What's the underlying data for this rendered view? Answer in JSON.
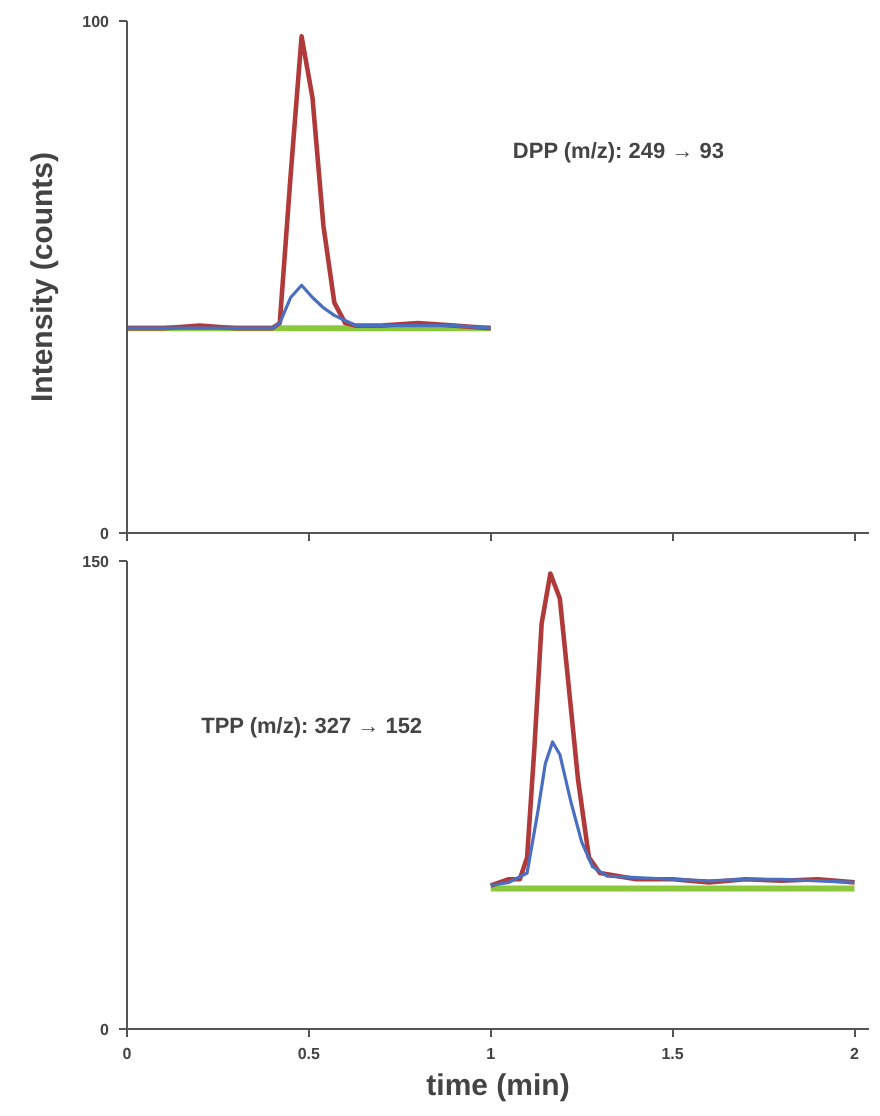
{
  "chart_data": [
    {
      "type": "line",
      "ylabel": "Intensity (counts)",
      "annotations": [
        "DPP (m/z): 249 → 93"
      ],
      "xlim": [
        0,
        2.04
      ],
      "xticks": [
        0,
        0.5,
        1,
        1.5,
        2
      ],
      "ylim": [
        0,
        100
      ],
      "yticks": [
        0,
        100
      ],
      "tick_labels": "y",
      "grid": false,
      "marker": "none",
      "line_style": "solid",
      "series": [
        {
          "color": "#8cc83c",
          "x": [
            0,
            1.0
          ],
          "values": [
            40,
            40
          ]
        },
        {
          "color": "#b03a3a",
          "x": [
            0,
            0.1,
            0.2,
            0.3,
            0.4,
            0.42,
            0.45,
            0.48,
            0.51,
            0.54,
            0.57,
            0.6,
            0.63,
            0.7,
            0.8,
            0.9,
            1.0
          ],
          "values": [
            40,
            40,
            40.5,
            40,
            40,
            41,
            70,
            97,
            85,
            60,
            45,
            41,
            40.5,
            40.5,
            41,
            40.5,
            40
          ]
        },
        {
          "color": "#4a6fc0",
          "x": [
            0,
            0.1,
            0.2,
            0.3,
            0.4,
            0.42,
            0.45,
            0.48,
            0.51,
            0.54,
            0.57,
            0.6,
            0.63,
            0.7,
            0.8,
            0.9,
            1.0
          ],
          "values": [
            40,
            40,
            40,
            40,
            40,
            41,
            46,
            48.4,
            46,
            44,
            42.5,
            41.5,
            40.5,
            40.5,
            40.5,
            40.5,
            40
          ]
        }
      ]
    },
    {
      "type": "line",
      "xlabel": "time (min)",
      "annotations": [
        "TPP (m/z): 327 → 152"
      ],
      "xlim": [
        0,
        2.04
      ],
      "xticks": [
        0,
        0.5,
        1,
        1.5,
        2
      ],
      "ylim": [
        0,
        150
      ],
      "yticks": [
        0,
        150
      ],
      "grid": false,
      "marker": "none",
      "line_style": "solid",
      "series": [
        {
          "color": "#8cc83c",
          "x": [
            1.0,
            2.0
          ],
          "values": [
            45,
            45
          ]
        },
        {
          "color": "#b03a3a",
          "x": [
            1.0,
            1.05,
            1.08,
            1.1,
            1.12,
            1.14,
            1.164,
            1.19,
            1.21,
            1.24,
            1.27,
            1.3,
            1.35,
            1.4,
            1.5,
            1.6,
            1.7,
            1.8,
            1.9,
            2.0
          ],
          "values": [
            46,
            48,
            48,
            55,
            90,
            130,
            146,
            138,
            115,
            80,
            55,
            50,
            49,
            48,
            48,
            47,
            48,
            47.5,
            48,
            47
          ]
        },
        {
          "color": "#4a6fc0",
          "x": [
            1.0,
            1.05,
            1.1,
            1.13,
            1.15,
            1.17,
            1.19,
            1.22,
            1.25,
            1.28,
            1.32,
            1.4,
            1.5,
            1.6,
            1.7,
            1.8,
            1.9,
            2.0
          ],
          "values": [
            46,
            47,
            50,
            70,
            85,
            92,
            88,
            73,
            60,
            52,
            49,
            48.5,
            48,
            47.5,
            48,
            48,
            47.5,
            47
          ]
        }
      ]
    }
  ]
}
